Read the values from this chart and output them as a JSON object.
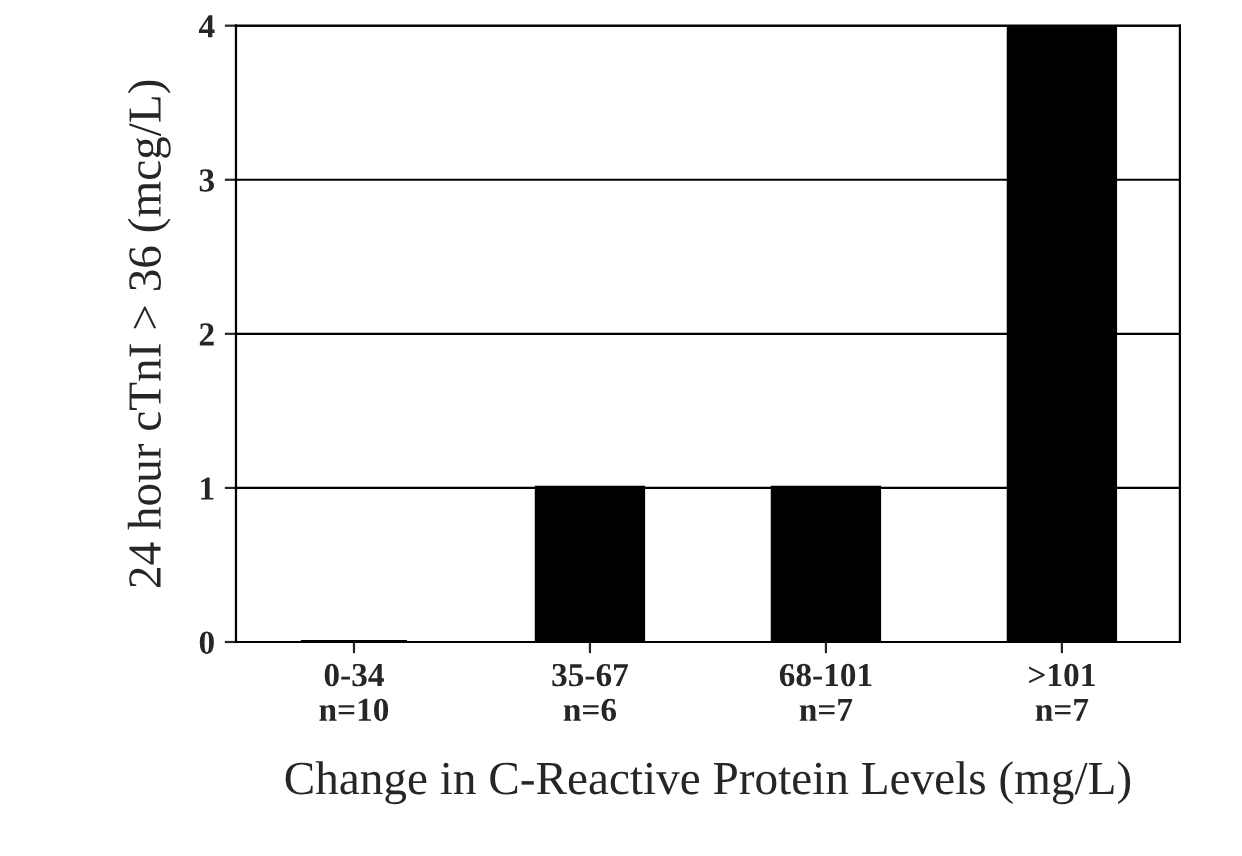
{
  "chart_data": {
    "type": "bar",
    "xlabel": "Change in C-Reactive Protein Levels (mg/L)",
    "ylabel": "24 hour cTnI > 36 (mcg/L)",
    "categories": [
      "0-34\nn=10",
      "35-67\nn=6",
      "68-101\nn=7",
      ">101\nn=7"
    ],
    "values": [
      0,
      1,
      1,
      4
    ],
    "color": "#000000",
    "ylim": [
      0,
      4
    ],
    "yticks": [
      0,
      1,
      2,
      3,
      4
    ],
    "grid": "y"
  }
}
